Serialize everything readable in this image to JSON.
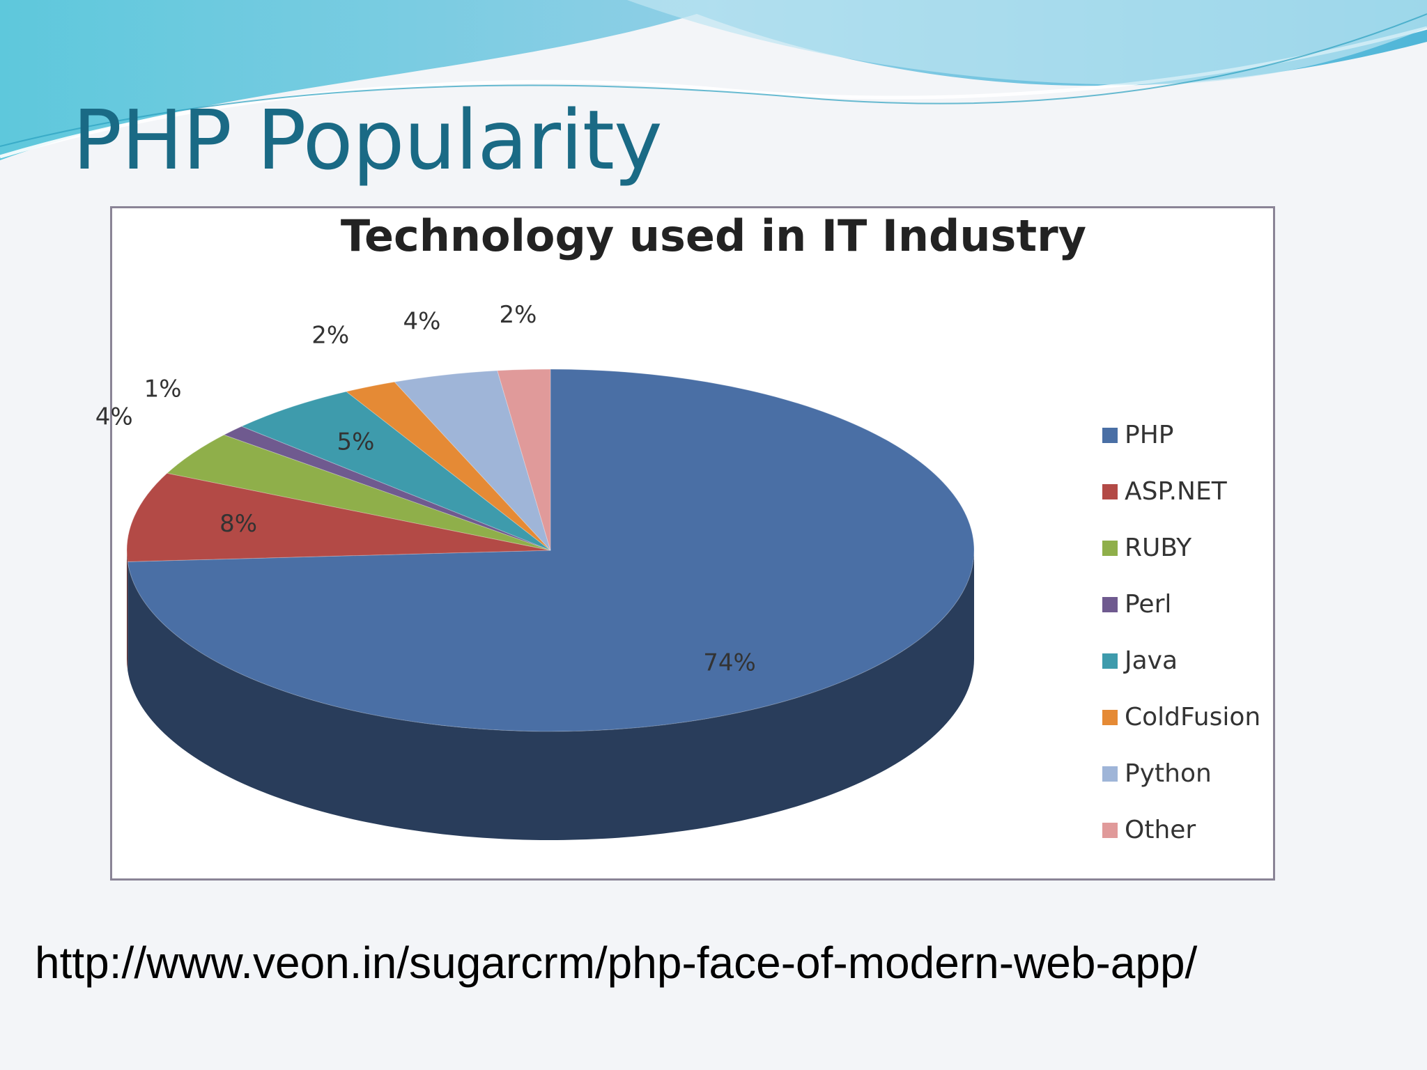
{
  "slide": {
    "title": "PHP Popularity",
    "source_url": "http://www.veon.in/sugarcrm/php-face-of-modern-web-app/"
  },
  "chart_data": {
    "type": "pie",
    "title": "Technology used in IT Industry",
    "style": "3d",
    "legend_position": "right",
    "categories": [
      "PHP",
      "ASP.NET",
      "RUBY",
      "Perl",
      "Java",
      "ColdFusion",
      "Python",
      "Other"
    ],
    "values": [
      74,
      8,
      4,
      1,
      5,
      2,
      4,
      2
    ],
    "value_labels": [
      "74%",
      "8%",
      "4%",
      "1%",
      "5%",
      "2%",
      "4%",
      "2%"
    ],
    "colors": [
      "#4a6fa5",
      "#b34a46",
      "#8faf4a",
      "#6f5a8f",
      "#3e9bac",
      "#e58a35",
      "#9fb5d8",
      "#e09a9a"
    ]
  }
}
